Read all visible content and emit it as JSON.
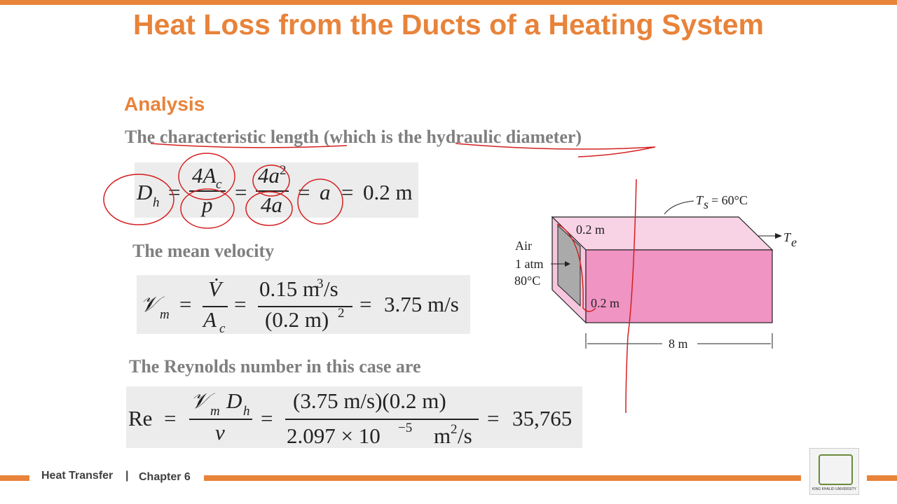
{
  "header": {
    "title": "Heat Loss from the Ducts of a Heating System"
  },
  "section": "Analysis",
  "steps": [
    {
      "heading": "The characteristic length (which is the hydraulic diameter)",
      "equation": [
        "D",
        "h",
        "=",
        "4A",
        "c",
        "p",
        "=",
        "4a",
        "2",
        "4a",
        "=",
        "a",
        "=",
        "0.2 m"
      ]
    },
    {
      "heading": "The mean velocity",
      "equation": [
        "𝒱",
        "m",
        "=",
        "V̇",
        "A",
        "c",
        "=",
        "0.15 m",
        "3",
        "/s",
        "(0.2 m)",
        "2",
        "=",
        "3.75 m/s"
      ]
    },
    {
      "heading": "The Reynolds number in this case are",
      "equation": [
        "Re",
        "=",
        "𝒱",
        "m",
        "D",
        "h",
        "ν",
        "=",
        "(3.75 m/s)(0.2 m)",
        "2.097 × 10",
        "−5",
        "m",
        "2",
        "/s",
        "=",
        "35,765"
      ]
    }
  ],
  "figure": {
    "surface_symbol": "T",
    "surface_sub": "s",
    "surface_value": "= 60°C",
    "inlet_height": "0.2 m",
    "fluid": "Air",
    "pressure": "1 atm",
    "inlet_temp": "80°C",
    "inlet_width": "0.2 m",
    "length": "8 m",
    "exit_symbol": "T",
    "exit_sub": "e"
  },
  "footer": {
    "course": "Heat Transfer",
    "separator": "|",
    "chapter": "Chapter 6",
    "logo_text": "KING KHALID UNIVERSITY"
  }
}
